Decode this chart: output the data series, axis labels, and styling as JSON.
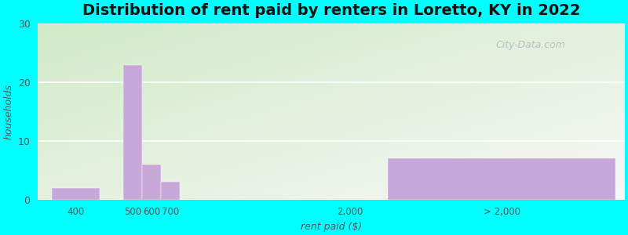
{
  "title": "Distribution of rent paid by renters in Loretto, KY in 2022",
  "xlabel": "rent paid ($)",
  "ylabel": "households",
  "background_color": "#00ffff",
  "bar_color": "#c8a8d8",
  "categories": [
    "400",
    "500",
    "600",
    "700",
    "2,000",
    "> 2,000"
  ],
  "bar_positions": [
    1.5,
    4.5,
    5.5,
    6.5,
    16.0,
    24.0
  ],
  "bar_widths": [
    2.5,
    1.0,
    1.0,
    1.0,
    0.01,
    12.0
  ],
  "bar_values": [
    2,
    23,
    6,
    3,
    0,
    7
  ],
  "xtick_positions": [
    1.5,
    4.5,
    5.5,
    6.5,
    16.0,
    24.0
  ],
  "xtick_labels": [
    "400",
    "500",
    "600",
    "700",
    "2,000",
    "> 2,000"
  ],
  "xlim": [
    -0.5,
    30.5
  ],
  "ylim": [
    0,
    30
  ],
  "yticks": [
    0,
    10,
    20,
    30
  ],
  "title_fontsize": 14,
  "axis_label_fontsize": 9,
  "watermark": "City-Data.com"
}
